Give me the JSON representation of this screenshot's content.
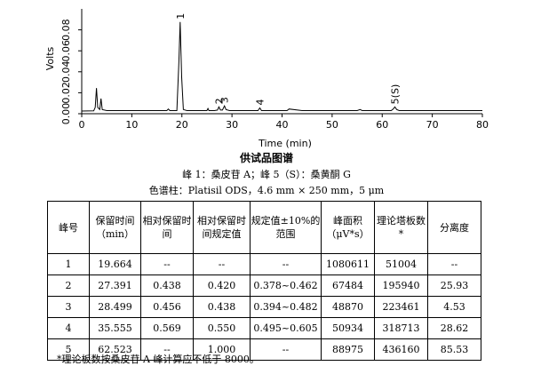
{
  "chart_data": {
    "type": "line",
    "xlabel": "Time (min)",
    "ylabel": "Volts",
    "xlim": [
      0,
      80
    ],
    "ylim": [
      0,
      0.1
    ],
    "x_ticks": [
      "0",
      "10",
      "20",
      "30",
      "40",
      "50",
      "60",
      "70",
      "80"
    ],
    "y_ticks": [
      "0.00",
      "0.02",
      "0.04",
      "0.06",
      "0.08"
    ],
    "series": [
      {
        "x": [
          0,
          2.4,
          2.7,
          2.95,
          3.2,
          3.6,
          3.85,
          4.1,
          5,
          10,
          15,
          17,
          17.3,
          17.6,
          19,
          19.4,
          19.66,
          19.95,
          20.3,
          21,
          23,
          25,
          25.2,
          25.4,
          26.5,
          27.1,
          27.39,
          27.7,
          28.1,
          28.5,
          28.8,
          29.5,
          32,
          35.2,
          35.56,
          35.9,
          38,
          41,
          41.4,
          44,
          47,
          50,
          55,
          55.6,
          56,
          61.8,
          62.2,
          62.52,
          62.9,
          63.4,
          67,
          72,
          77,
          80
        ],
        "y": [
          0.0025,
          0.0028,
          0.006,
          0.0245,
          0.006,
          0.004,
          0.0145,
          0.004,
          0.003,
          0.003,
          0.003,
          0.003,
          0.0045,
          0.003,
          0.003,
          0.05,
          0.0875,
          0.035,
          0.004,
          0.003,
          0.003,
          0.003,
          0.005,
          0.003,
          0.003,
          0.0035,
          0.0065,
          0.0035,
          0.0035,
          0.0075,
          0.004,
          0.003,
          0.003,
          0.003,
          0.0055,
          0.003,
          0.003,
          0.003,
          0.0045,
          0.003,
          0.003,
          0.003,
          0.003,
          0.004,
          0.003,
          0.003,
          0.0045,
          0.0065,
          0.004,
          0.003,
          0.003,
          0.003,
          0.003,
          0.003
        ]
      }
    ],
    "peak_labels": [
      {
        "text": "1",
        "x": 19.66,
        "y": 0.0875
      },
      {
        "text": "2",
        "x": 27.39,
        "y": 0.0065
      },
      {
        "text": "3",
        "x": 28.5,
        "y": 0.0075
      },
      {
        "text": "4",
        "x": 35.56,
        "y": 0.0055
      },
      {
        "text": "5(S)",
        "x": 62.52,
        "y": 0.0065
      }
    ]
  },
  "caption": {
    "title": "供试品图谱",
    "peaks": "峰 1：桑皮苷 A；峰 5（S）：桑黄酮 G",
    "column": "色谱柱：Platisil ODS，4.6 mm × 250 mm，5 μm"
  },
  "table": {
    "headers": [
      "峰号",
      "保留时间（min）",
      "相对保留时间",
      "相对保留时间规定值",
      "规定值±10%的范围",
      "峰面积（μV*s）",
      "理论塔板数*",
      "分离度"
    ],
    "rows": [
      [
        "1",
        "19.664",
        "--",
        "--",
        "--",
        "1080611",
        "51004",
        "--"
      ],
      [
        "2",
        "27.391",
        "0.438",
        "0.420",
        "0.378~0.462",
        "67484",
        "195940",
        "25.93"
      ],
      [
        "3",
        "28.499",
        "0.456",
        "0.438",
        "0.394~0.482",
        "48870",
        "223461",
        "4.53"
      ],
      [
        "4",
        "35.555",
        "0.569",
        "0.550",
        "0.495~0.605",
        "50934",
        "318713",
        "28.62"
      ],
      [
        "5",
        "62.523",
        "--",
        "1.000",
        "--",
        "88975",
        "436160",
        "85.53"
      ]
    ]
  },
  "footnote": "*理论板数按桑皮苷 A 峰计算应不低于 8000。"
}
